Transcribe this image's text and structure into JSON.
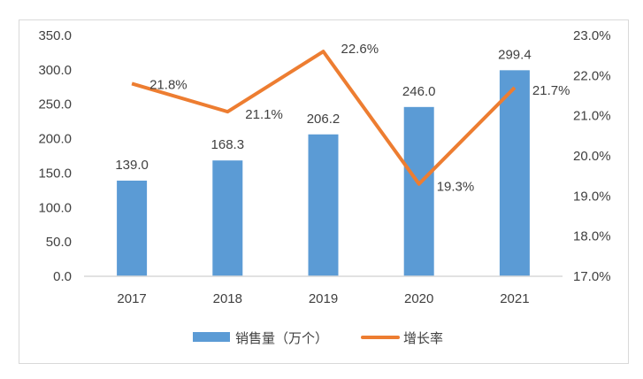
{
  "chart_data": {
    "type": "bar+line",
    "categories": [
      "2017",
      "2018",
      "2019",
      "2020",
      "2021"
    ],
    "series": [
      {
        "name": "销售量（万个）",
        "type": "bar",
        "axis": "left",
        "values": [
          139.0,
          168.3,
          206.2,
          246.0,
          299.4
        ],
        "labels": [
          "139.0",
          "168.3",
          "206.2",
          "246.0",
          "299.4"
        ],
        "color": "#5b9bd5"
      },
      {
        "name": "增长率",
        "type": "line",
        "axis": "right",
        "values": [
          21.8,
          21.1,
          22.6,
          19.3,
          21.7
        ],
        "labels": [
          "21.8%",
          "21.1%",
          "22.6%",
          "19.3%",
          "21.7%"
        ],
        "color": "#ed7d31"
      }
    ],
    "left_axis": {
      "ylim": [
        0,
        350
      ],
      "ticks": [
        "0.0",
        "50.0",
        "100.0",
        "150.0",
        "200.0",
        "250.0",
        "300.0",
        "350.0"
      ]
    },
    "right_axis": {
      "ylim": [
        17,
        23
      ],
      "unit": "%",
      "ticks": [
        "17.0%",
        "18.0%",
        "19.0%",
        "20.0%",
        "21.0%",
        "22.0%",
        "23.0%"
      ]
    },
    "grid": false,
    "legend": "bottom"
  }
}
